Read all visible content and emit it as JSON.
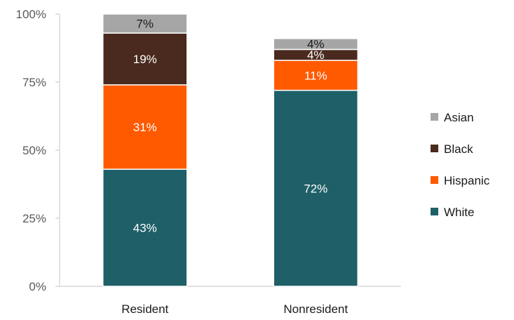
{
  "chart_data": {
    "type": "bar",
    "stacked": true,
    "percent_scale": true,
    "categories": [
      "Resident",
      "Nonresident"
    ],
    "series": [
      {
        "name": "White",
        "values": [
          43,
          72
        ],
        "labels": [
          "43%",
          "72%"
        ],
        "color": "#1f6068",
        "label_color": "#ffffff"
      },
      {
        "name": "Hispanic",
        "values": [
          31,
          11
        ],
        "labels": [
          "31%",
          "11%"
        ],
        "color": "#ff5a00",
        "label_color": "#ffffff"
      },
      {
        "name": "Black",
        "values": [
          19,
          4
        ],
        "labels": [
          "19%",
          "4%"
        ],
        "color": "#4a2a1e",
        "label_color": "#ffffff"
      },
      {
        "name": "Asian",
        "values": [
          7,
          4
        ],
        "labels": [
          "7%",
          "4%"
        ],
        "color": "#a6a6a6",
        "label_color": "#1a1a1a"
      }
    ],
    "ylim": [
      0,
      100
    ],
    "yticks": [
      0,
      25,
      50,
      75,
      100
    ],
    "ytick_labels": [
      "0%",
      "25%",
      "50%",
      "75%",
      "100%"
    ],
    "legend": {
      "position": "right",
      "order": [
        "Asian",
        "Black",
        "Hispanic",
        "White"
      ]
    },
    "grid": false,
    "title": "",
    "xlabel": "",
    "ylabel": ""
  }
}
